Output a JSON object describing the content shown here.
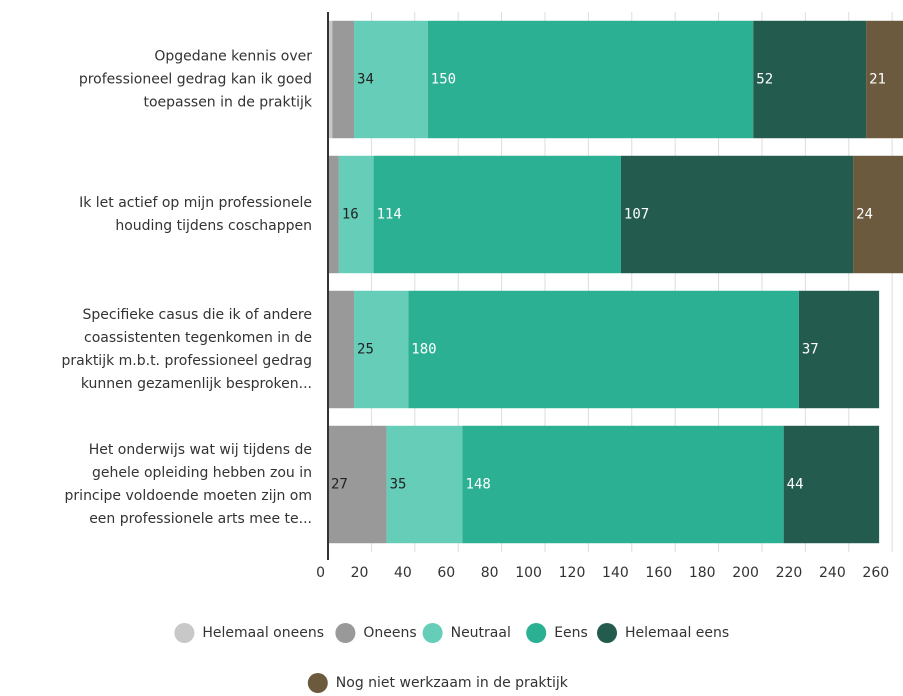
{
  "chart_data": {
    "type": "stacked_barh",
    "categories": [
      "Opgedane kennis over\nprofessioneel gedrag kan ik goed\ntoepassen in de praktijk",
      "Ik let actief op mijn professionele\nhouding tijdens coschappen",
      "Specifieke casus die ik of andere\ncoassistenten tegenkomen in de\npraktijk m.b.t. professioneel gedrag\nkunnen gezamenlijk besproken...",
      "Het onderwijs wat wij tijdens de\ngehele opleiding hebben zou in\nprincipe voldoende moeten zijn om\neen professionele arts mee te..."
    ],
    "series": [
      {
        "name": "Helemaal oneens",
        "color": "#c8c8c8",
        "values": [
          2,
          0,
          0,
          0
        ]
      },
      {
        "name": "Oneens",
        "color": "#999999",
        "values": [
          10,
          5,
          12,
          27
        ]
      },
      {
        "name": "Neutraal",
        "color": "#66cdb8",
        "values": [
          34,
          16,
          25,
          35
        ]
      },
      {
        "name": "Eens",
        "color": "#2bb093",
        "values": [
          150,
          114,
          180,
          148
        ]
      },
      {
        "name": "Helemaal eens",
        "color": "#235c4e",
        "values": [
          52,
          107,
          37,
          44
        ]
      },
      {
        "name": "Nog niet werkzaam in de praktijk",
        "color": "#6b5a3e",
        "values": [
          21,
          24,
          0,
          0
        ]
      }
    ],
    "xlim": [
      0,
      265
    ],
    "xticks": [
      0,
      20,
      40,
      60,
      80,
      100,
      120,
      140,
      160,
      180,
      200,
      220,
      240,
      260
    ],
    "grid": true
  }
}
